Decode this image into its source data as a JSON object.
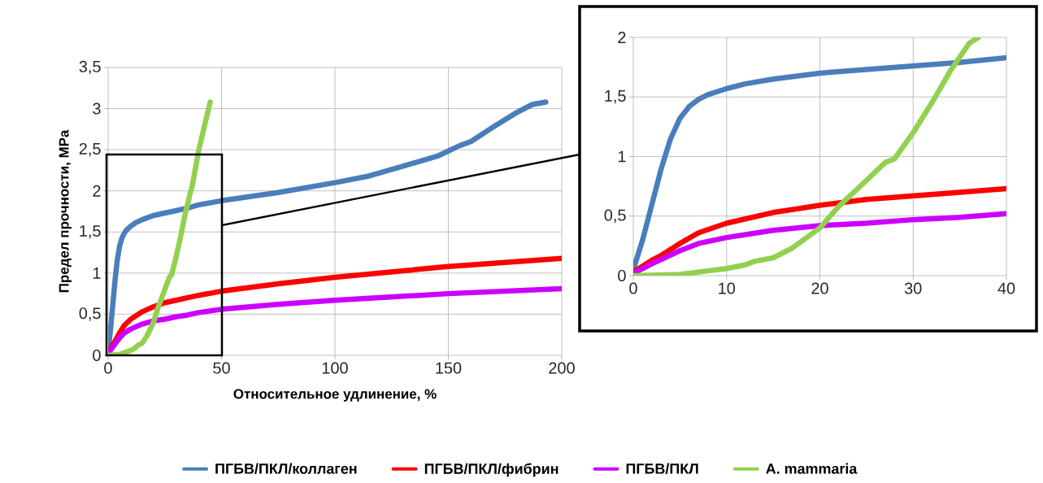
{
  "chart_data": [
    {
      "type": "line",
      "xlabel": "Относительное удлинение, %",
      "ylabel": "Предел прочности, MPa",
      "xlim": [
        0,
        200
      ],
      "ylim": [
        0,
        3.5
      ],
      "xticks": [
        0,
        50,
        100,
        150,
        200
      ],
      "yticks": [
        0,
        {
          "value": 0.5,
          "label": "0,5"
        },
        1,
        {
          "value": 1.5,
          "label": "1,5"
        },
        2,
        {
          "value": 2.5,
          "label": "2,5"
        },
        3,
        {
          "value": 3.5,
          "label": "3,5"
        }
      ],
      "grid": true,
      "legend": "bottom",
      "series": [
        {
          "name": "ПГБВ/ПКЛ/коллаген",
          "color": "#4a7ebb",
          "x": [
            0,
            1,
            2,
            3,
            4,
            5,
            6,
            7,
            8,
            10,
            12,
            15,
            20,
            25,
            30,
            35,
            40,
            50,
            60,
            75,
            100,
            115,
            130,
            145,
            155,
            160,
            170,
            180,
            187,
            193
          ],
          "values": [
            0.05,
            0.3,
            0.6,
            0.9,
            1.15,
            1.32,
            1.42,
            1.48,
            1.52,
            1.57,
            1.61,
            1.65,
            1.7,
            1.73,
            1.76,
            1.79,
            1.83,
            1.88,
            1.92,
            1.98,
            2.1,
            2.18,
            2.3,
            2.42,
            2.55,
            2.6,
            2.78,
            2.95,
            3.05,
            3.08
          ]
        },
        {
          "name": "ПГБВ/ПКЛ/фибрин",
          "color": "#ff0000",
          "x": [
            0,
            2,
            3,
            5,
            7,
            10,
            15,
            20,
            25,
            30,
            35,
            40,
            50,
            75,
            100,
            150,
            200
          ],
          "values": [
            0.03,
            0.13,
            0.17,
            0.27,
            0.36,
            0.44,
            0.53,
            0.59,
            0.64,
            0.67,
            0.7,
            0.73,
            0.78,
            0.87,
            0.95,
            1.08,
            1.18
          ]
        },
        {
          "name": "ПГБВ/ПКЛ",
          "color": "#cc00ff",
          "x": [
            0,
            2,
            5,
            7,
            10,
            15,
            20,
            25,
            30,
            35,
            40,
            50,
            75,
            100,
            150,
            200
          ],
          "values": [
            0.02,
            0.1,
            0.21,
            0.27,
            0.32,
            0.38,
            0.42,
            0.44,
            0.47,
            0.49,
            0.52,
            0.56,
            0.62,
            0.67,
            0.75,
            0.81
          ]
        },
        {
          "name": "A. mammaria",
          "color": "#92d050",
          "x": [
            0,
            5,
            8,
            10,
            12,
            13,
            15,
            17,
            20,
            22,
            25,
            27,
            28,
            30,
            32,
            34,
            36,
            37,
            40,
            43,
            45
          ],
          "values": [
            0,
            0.01,
            0.04,
            0.06,
            0.09,
            0.12,
            0.15,
            0.23,
            0.4,
            0.58,
            0.8,
            0.95,
            0.98,
            1.2,
            1.45,
            1.72,
            1.95,
            2.05,
            2.5,
            2.85,
            3.08
          ]
        }
      ]
    },
    {
      "type": "line",
      "xlim": [
        0,
        40
      ],
      "ylim": [
        0,
        2
      ],
      "xticks": [
        0,
        10,
        20,
        30,
        40
      ],
      "yticks": [
        0,
        {
          "value": 0.5,
          "label": "0,5"
        },
        1,
        {
          "value": 1.5,
          "label": "1,5"
        },
        2
      ],
      "grid": true,
      "series": [
        {
          "color": "#4a7ebb",
          "x": [
            0,
            1,
            2,
            3,
            4,
            5,
            6,
            7,
            8,
            10,
            12,
            15,
            20,
            25,
            30,
            35,
            40
          ],
          "values": [
            0.05,
            0.3,
            0.6,
            0.9,
            1.15,
            1.32,
            1.42,
            1.48,
            1.52,
            1.57,
            1.61,
            1.65,
            1.7,
            1.73,
            1.76,
            1.79,
            1.83
          ]
        },
        {
          "color": "#ff0000",
          "x": [
            0,
            2,
            3,
            5,
            7,
            10,
            15,
            20,
            25,
            30,
            35,
            40
          ],
          "values": [
            0.03,
            0.13,
            0.17,
            0.27,
            0.36,
            0.44,
            0.53,
            0.59,
            0.64,
            0.67,
            0.7,
            0.73
          ]
        },
        {
          "color": "#cc00ff",
          "x": [
            0,
            2,
            5,
            7,
            10,
            15,
            20,
            25,
            30,
            35,
            40
          ],
          "values": [
            0.02,
            0.1,
            0.21,
            0.27,
            0.32,
            0.38,
            0.42,
            0.44,
            0.47,
            0.49,
            0.52
          ]
        },
        {
          "color": "#92d050",
          "x": [
            0,
            5,
            8,
            10,
            12,
            13,
            15,
            17,
            20,
            22,
            25,
            27,
            28,
            30,
            32,
            34,
            36,
            37
          ],
          "values": [
            0,
            0.01,
            0.04,
            0.06,
            0.09,
            0.12,
            0.15,
            0.23,
            0.4,
            0.58,
            0.8,
            0.95,
            0.98,
            1.2,
            1.45,
            1.72,
            1.95,
            2.0
          ]
        }
      ]
    }
  ]
}
